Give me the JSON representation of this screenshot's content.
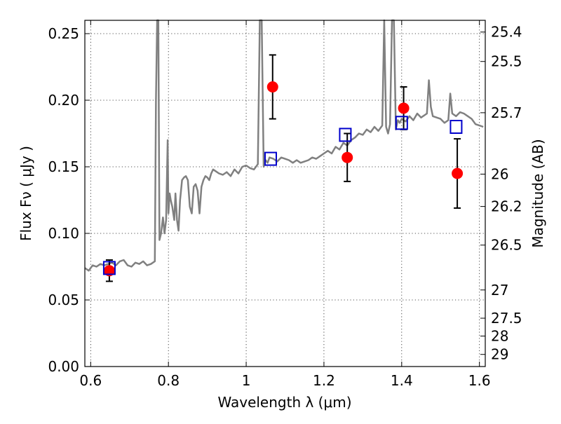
{
  "chart_data": {
    "type": "scatter",
    "xlabel": "Wavelength  λ (μm)",
    "ylabel": "Flux  Fν  ( μJy )",
    "y2label": "Magnitude (AB)",
    "xlim": [
      0.585,
      1.615
    ],
    "ylim": [
      0.0,
      0.26
    ],
    "grid": true,
    "x_ticks": [
      0.6,
      0.8,
      1.0,
      1.2,
      1.4,
      1.6
    ],
    "x_tick_labels": [
      "0.6",
      "0.8",
      "1",
      "1.2",
      "1.4",
      "1.6"
    ],
    "y_ticks": [
      0.0,
      0.05,
      0.1,
      0.15,
      0.2,
      0.25
    ],
    "y_tick_labels": [
      "0.00",
      "0.05",
      "0.10",
      "0.15",
      "0.20",
      "0.25"
    ],
    "magnitude_ticks": [
      {
        "label": "25.4",
        "flux": 0.2512
      },
      {
        "label": "25.5",
        "flux": 0.2291
      },
      {
        "label": "25.7",
        "flux": 0.1906
      },
      {
        "label": "26",
        "flux": 0.1445
      },
      {
        "label": "26.2",
        "flux": 0.1202
      },
      {
        "label": "26.5",
        "flux": 0.0912
      },
      {
        "label": "27",
        "flux": 0.0575
      },
      {
        "label": "27.5",
        "flux": 0.0363
      },
      {
        "label": "28",
        "flux": 0.0229
      },
      {
        "label": "29",
        "flux": 0.0091
      }
    ],
    "series": [
      {
        "kind": "line",
        "color": "#808080",
        "x": [
          0.585,
          0.595,
          0.605,
          0.615,
          0.625,
          0.635,
          0.645,
          0.655,
          0.665,
          0.675,
          0.685,
          0.695,
          0.705,
          0.715,
          0.725,
          0.735,
          0.745,
          0.755,
          0.765,
          0.768,
          0.771,
          0.774,
          0.777,
          0.781,
          0.786,
          0.79,
          0.794,
          0.798,
          0.8,
          0.803,
          0.806,
          0.81,
          0.815,
          0.818,
          0.822,
          0.826,
          0.83,
          0.835,
          0.84,
          0.845,
          0.85,
          0.855,
          0.86,
          0.865,
          0.87,
          0.875,
          0.88,
          0.885,
          0.89,
          0.895,
          0.9,
          0.905,
          0.91,
          0.915,
          0.92,
          0.93,
          0.94,
          0.95,
          0.96,
          0.97,
          0.98,
          0.99,
          1.0,
          1.01,
          1.02,
          1.03,
          1.035,
          1.04,
          1.045,
          1.05,
          1.055,
          1.06,
          1.07,
          1.08,
          1.09,
          1.1,
          1.11,
          1.12,
          1.13,
          1.14,
          1.15,
          1.16,
          1.17,
          1.18,
          1.19,
          1.2,
          1.21,
          1.22,
          1.23,
          1.24,
          1.25,
          1.26,
          1.27,
          1.28,
          1.29,
          1.3,
          1.31,
          1.32,
          1.33,
          1.34,
          1.35,
          1.355,
          1.36,
          1.365,
          1.37,
          1.375,
          1.38,
          1.385,
          1.39,
          1.395,
          1.4,
          1.41,
          1.42,
          1.43,
          1.44,
          1.45,
          1.46,
          1.465,
          1.47,
          1.475,
          1.48,
          1.49,
          1.5,
          1.51,
          1.52,
          1.525,
          1.53,
          1.54,
          1.55,
          1.56,
          1.57,
          1.58,
          1.59,
          1.6,
          1.61
        ],
        "y": [
          0.074,
          0.072,
          0.076,
          0.075,
          0.077,
          0.076,
          0.077,
          0.078,
          0.076,
          0.079,
          0.08,
          0.076,
          0.075,
          0.078,
          0.077,
          0.079,
          0.076,
          0.077,
          0.079,
          0.2,
          0.26,
          0.26,
          0.095,
          0.1,
          0.112,
          0.1,
          0.11,
          0.17,
          0.115,
          0.13,
          0.125,
          0.12,
          0.11,
          0.13,
          0.11,
          0.102,
          0.125,
          0.14,
          0.142,
          0.143,
          0.14,
          0.12,
          0.115,
          0.135,
          0.137,
          0.132,
          0.115,
          0.135,
          0.14,
          0.143,
          0.142,
          0.14,
          0.145,
          0.148,
          0.147,
          0.145,
          0.144,
          0.146,
          0.143,
          0.148,
          0.145,
          0.15,
          0.151,
          0.149,
          0.148,
          0.152,
          0.26,
          0.26,
          0.15,
          0.155,
          0.153,
          0.157,
          0.156,
          0.154,
          0.157,
          0.156,
          0.155,
          0.153,
          0.155,
          0.153,
          0.154,
          0.155,
          0.157,
          0.156,
          0.158,
          0.16,
          0.162,
          0.16,
          0.165,
          0.163,
          0.168,
          0.166,
          0.17,
          0.172,
          0.175,
          0.174,
          0.178,
          0.176,
          0.18,
          0.177,
          0.181,
          0.26,
          0.18,
          0.175,
          0.182,
          0.26,
          0.26,
          0.178,
          0.185,
          0.183,
          0.186,
          0.184,
          0.188,
          0.185,
          0.19,
          0.187,
          0.189,
          0.19,
          0.215,
          0.195,
          0.188,
          0.187,
          0.186,
          0.183,
          0.185,
          0.205,
          0.19,
          0.188,
          0.191,
          0.19,
          0.188,
          0.186,
          0.182,
          0.181,
          0.18
        ]
      },
      {
        "kind": "points",
        "color": "#ff0000",
        "marker": "circle",
        "x": [
          0.648,
          1.068,
          1.26,
          1.405,
          1.543
        ],
        "y": [
          0.072,
          0.21,
          0.157,
          0.194,
          0.145
        ],
        "yerr": [
          0.008,
          0.024,
          0.018,
          0.016,
          0.026
        ]
      },
      {
        "kind": "points",
        "color": "#0000cc",
        "marker": "open-square",
        "x": [
          0.648,
          1.063,
          1.255,
          1.4,
          1.54
        ],
        "y": [
          0.074,
          0.156,
          0.174,
          0.183,
          0.18
        ]
      }
    ]
  }
}
